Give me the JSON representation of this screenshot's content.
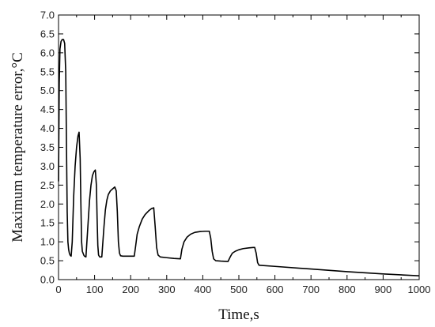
{
  "chart_data": {
    "type": "line",
    "title": "",
    "xlabel": "Time,s",
    "ylabel": "Maximum temperature error,°C",
    "xlim": [
      0,
      1000
    ],
    "ylim": [
      0,
      7.0
    ],
    "xticks": [
      0,
      100,
      200,
      300,
      400,
      500,
      600,
      700,
      800,
      900,
      1000
    ],
    "yticks": [
      0.0,
      0.5,
      1.0,
      1.5,
      2.0,
      2.5,
      3.0,
      3.5,
      4.0,
      4.5,
      5.0,
      5.5,
      6.0,
      6.5,
      7.0
    ],
    "grid": false,
    "line_color": "#000000",
    "series": [
      {
        "x": [
          0,
          2,
          4,
          7,
          10,
          14,
          17,
          20,
          22,
          24,
          26,
          28,
          30,
          32,
          35,
          38,
          42,
          46,
          50,
          54,
          57,
          60,
          62,
          64,
          66,
          68,
          70,
          72,
          76,
          82,
          86,
          90,
          94,
          98,
          102,
          105,
          107,
          109,
          111,
          114,
          120,
          126,
          130,
          134,
          138,
          144,
          150,
          156,
          160,
          163,
          166,
          169,
          172,
          178,
          190,
          200,
          210,
          214,
          218,
          224,
          232,
          240,
          250,
          258,
          264,
          268,
          272,
          276,
          282,
          300,
          320,
          338,
          342,
          348,
          356,
          366,
          378,
          392,
          406,
          418,
          422,
          426,
          430,
          436,
          450,
          470,
          476,
          482,
          490,
          500,
          512,
          528,
          540,
          544,
          548,
          552,
          556,
          600,
          700,
          800,
          900,
          1000
        ],
        "y": [
          2.6,
          5.2,
          6.1,
          6.3,
          6.35,
          6.35,
          6.25,
          5.5,
          3.6,
          1.8,
          1.0,
          0.8,
          0.7,
          0.65,
          0.62,
          1.0,
          2.2,
          3.0,
          3.5,
          3.8,
          3.9,
          3.2,
          2.0,
          1.0,
          0.75,
          0.7,
          0.65,
          0.62,
          0.6,
          1.5,
          2.1,
          2.5,
          2.75,
          2.85,
          2.9,
          2.5,
          1.6,
          0.9,
          0.65,
          0.6,
          0.6,
          1.4,
          1.85,
          2.1,
          2.25,
          2.35,
          2.4,
          2.45,
          2.35,
          1.8,
          1.0,
          0.7,
          0.63,
          0.62,
          0.62,
          0.62,
          0.62,
          0.9,
          1.2,
          1.4,
          1.6,
          1.72,
          1.82,
          1.88,
          1.9,
          1.4,
          0.85,
          0.65,
          0.6,
          0.58,
          0.56,
          0.55,
          0.8,
          1.0,
          1.12,
          1.2,
          1.25,
          1.27,
          1.28,
          1.28,
          1.1,
          0.75,
          0.55,
          0.5,
          0.49,
          0.48,
          0.6,
          0.7,
          0.75,
          0.79,
          0.82,
          0.84,
          0.85,
          0.85,
          0.7,
          0.45,
          0.38,
          0.35,
          0.28,
          0.21,
          0.15,
          0.1
        ]
      }
    ]
  }
}
